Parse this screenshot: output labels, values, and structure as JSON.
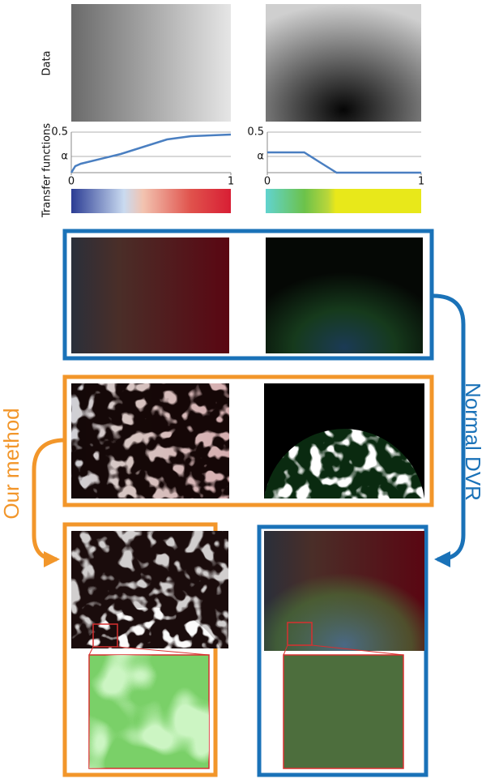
{
  "labels": {
    "data": "Data",
    "transfer_functions": "Transfer functions",
    "our_method": "Our method",
    "normal_dvr": "Normal DVR"
  },
  "chart_data": [
    {
      "type": "line",
      "x": [
        0,
        0.025,
        0.06,
        0.31,
        0.6,
        0.75,
        1
      ],
      "values": [
        0,
        0.08,
        0.11,
        0.23,
        0.41,
        0.45,
        0.47
      ],
      "color": "#4a7fc1",
      "xlim": [
        0,
        1
      ],
      "ylim": [
        0,
        0.5
      ],
      "xticks": [
        0,
        1
      ],
      "yticks": [
        {
          "value": 0.2,
          "label": "α"
        },
        0.5
      ],
      "grid": true
    },
    {
      "type": "line",
      "x": [
        0,
        0.24,
        0.34,
        0.45,
        1
      ],
      "values": [
        0.25,
        0.25,
        0.13,
        0,
        0
      ],
      "color": "#4a7fc1",
      "xlim": [
        0,
        1
      ],
      "ylim": [
        0,
        0.5
      ],
      "xticks": [
        0,
        1
      ],
      "yticks": [
        {
          "value": 0.2,
          "label": "α"
        },
        0.5
      ],
      "grid": true
    }
  ]
}
